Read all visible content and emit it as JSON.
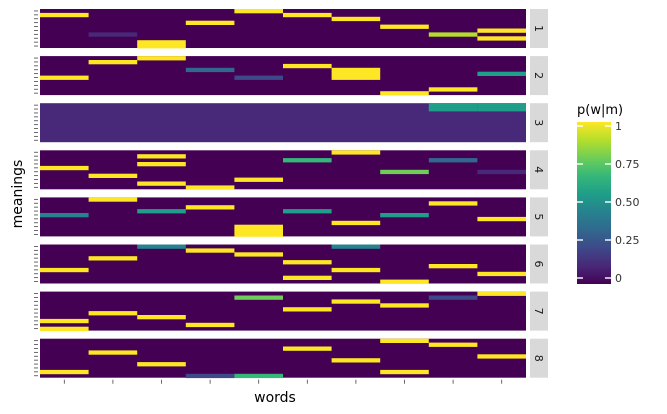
{
  "chart_data": {
    "type": "heatmap",
    "xlabel": "words",
    "ylabel": "meanings",
    "x_words_count": 10,
    "meanings_per_facet": 10,
    "legend": {
      "title": "p(w|m)",
      "ticks": [
        1,
        0.75,
        0.5,
        0.25,
        0
      ],
      "tick_labels": [
        "1",
        "0.75",
        "0.50",
        "0.25",
        "0"
      ],
      "range": [
        0,
        1
      ],
      "placement": "right"
    },
    "colors": {
      "background": "#440154",
      "panel_gap": "#ffffff",
      "strip_bg": "#d9d9d9",
      "viridis": [
        "#440154",
        "#482878",
        "#3e4989",
        "#31688e",
        "#26828e",
        "#1f9e89",
        "#35b779",
        "#6ece58",
        "#b5de2b",
        "#fde725"
      ]
    },
    "facets": [
      {
        "label": "1",
        "fill": 0,
        "cells": [
          [
            0,
            1,
            1
          ],
          [
            1,
            6,
            0.1
          ],
          [
            2,
            8,
            1
          ],
          [
            2,
            9,
            1
          ],
          [
            3,
            3,
            1
          ],
          [
            4,
            0,
            1
          ],
          [
            5,
            1,
            1
          ],
          [
            6,
            2,
            1
          ],
          [
            7,
            4,
            1
          ],
          [
            8,
            6,
            0.85
          ],
          [
            9,
            5,
            1
          ],
          [
            9,
            7,
            1
          ]
        ]
      },
      {
        "label": "2",
        "fill": 0,
        "cells": [
          [
            0,
            5,
            1
          ],
          [
            1,
            1,
            1
          ],
          [
            2,
            0,
            1
          ],
          [
            3,
            3,
            0.35
          ],
          [
            4,
            5,
            0.25
          ],
          [
            5,
            2,
            1
          ],
          [
            6,
            3,
            1
          ],
          [
            6,
            4,
            1
          ],
          [
            6,
            5,
            1
          ],
          [
            7,
            9,
            1
          ],
          [
            8,
            8,
            1
          ],
          [
            9,
            4,
            0.6
          ]
        ]
      },
      {
        "label": "3",
        "fill": 0.12,
        "cells": [
          [
            8,
            0,
            0.5
          ],
          [
            8,
            1,
            0.5
          ],
          [
            9,
            0,
            0.5
          ],
          [
            9,
            1,
            0.5
          ]
        ]
      },
      {
        "label": "4",
        "fill": 0,
        "cells": [
          [
            0,
            4,
            1
          ],
          [
            1,
            6,
            1
          ],
          [
            2,
            1,
            1
          ],
          [
            2,
            3,
            1
          ],
          [
            2,
            8,
            1
          ],
          [
            3,
            9,
            1
          ],
          [
            4,
            7,
            1
          ],
          [
            5,
            2,
            0.65
          ],
          [
            6,
            0,
            1
          ],
          [
            7,
            5,
            0.8
          ],
          [
            8,
            2,
            0.3
          ],
          [
            9,
            5,
            0.15
          ]
        ]
      },
      {
        "label": "5",
        "fill": 0,
        "cells": [
          [
            0,
            4,
            0.45
          ],
          [
            1,
            0,
            1
          ],
          [
            2,
            3,
            0.5
          ],
          [
            3,
            2,
            1
          ],
          [
            4,
            7,
            1
          ],
          [
            4,
            8,
            1
          ],
          [
            4,
            9,
            1
          ],
          [
            5,
            3,
            0.55
          ],
          [
            6,
            6,
            1
          ],
          [
            7,
            4,
            0.55
          ],
          [
            8,
            1,
            1
          ],
          [
            9,
            5,
            1
          ]
        ]
      },
      {
        "label": "6",
        "fill": 0,
        "cells": [
          [
            0,
            6,
            1
          ],
          [
            1,
            3,
            1
          ],
          [
            2,
            0,
            0.4
          ],
          [
            3,
            1,
            1
          ],
          [
            4,
            2,
            1
          ],
          [
            5,
            4,
            1
          ],
          [
            5,
            8,
            1
          ],
          [
            6,
            0,
            0.4
          ],
          [
            6,
            6,
            1
          ],
          [
            7,
            9,
            1
          ],
          [
            8,
            5,
            1
          ],
          [
            9,
            7,
            1
          ]
        ]
      },
      {
        "label": "7",
        "fill": 0,
        "cells": [
          [
            0,
            7,
            1
          ],
          [
            0,
            9,
            1
          ],
          [
            1,
            5,
            1
          ],
          [
            2,
            6,
            1
          ],
          [
            3,
            8,
            1
          ],
          [
            4,
            1,
            0.75
          ],
          [
            5,
            4,
            1
          ],
          [
            6,
            2,
            1
          ],
          [
            7,
            3,
            1
          ],
          [
            8,
            1,
            0.25
          ],
          [
            9,
            0,
            1
          ]
        ]
      },
      {
        "label": "8",
        "fill": 0,
        "cells": [
          [
            0,
            8,
            1
          ],
          [
            1,
            3,
            1
          ],
          [
            2,
            6,
            1
          ],
          [
            3,
            9,
            0.2
          ],
          [
            4,
            9,
            0.7
          ],
          [
            5,
            2,
            1
          ],
          [
            6,
            5,
            1
          ],
          [
            7,
            0,
            1
          ],
          [
            7,
            8,
            1
          ],
          [
            8,
            1,
            1
          ],
          [
            9,
            4,
            1
          ]
        ]
      }
    ]
  }
}
